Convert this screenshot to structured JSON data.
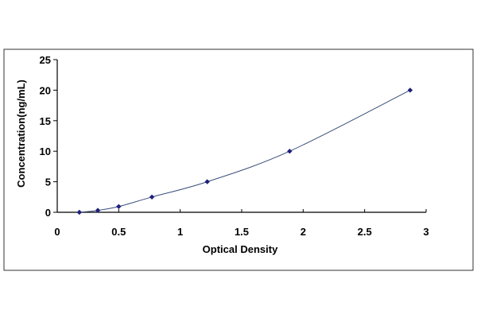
{
  "chart_data": {
    "type": "scatter",
    "title": "",
    "xlabel": "Optical Density",
    "ylabel": "Concentration(ng/mL)",
    "xlim": [
      0,
      3
    ],
    "ylim": [
      0,
      25
    ],
    "x_ticks": [
      "0",
      "0.5",
      "1",
      "1.5",
      "2",
      "2.5",
      "3"
    ],
    "y_ticks": [
      "0",
      "5",
      "10",
      "15",
      "20",
      "25"
    ],
    "grid": false,
    "legend": "none",
    "trendline": "smooth curve through points",
    "series": [
      {
        "points": [
          {
            "x": 0.18,
            "y": 0
          },
          {
            "x": 0.33,
            "y": 0.31
          },
          {
            "x": 0.5,
            "y": 0.94
          },
          {
            "x": 0.77,
            "y": 2.5
          },
          {
            "x": 1.22,
            "y": 5
          },
          {
            "x": 1.89,
            "y": 10
          },
          {
            "x": 2.87,
            "y": 20
          }
        ]
      }
    ],
    "colors": {
      "marker": "#1f1f7a",
      "curve": "#3a4f7a",
      "axis": "#000000",
      "frame": "#333333"
    }
  }
}
